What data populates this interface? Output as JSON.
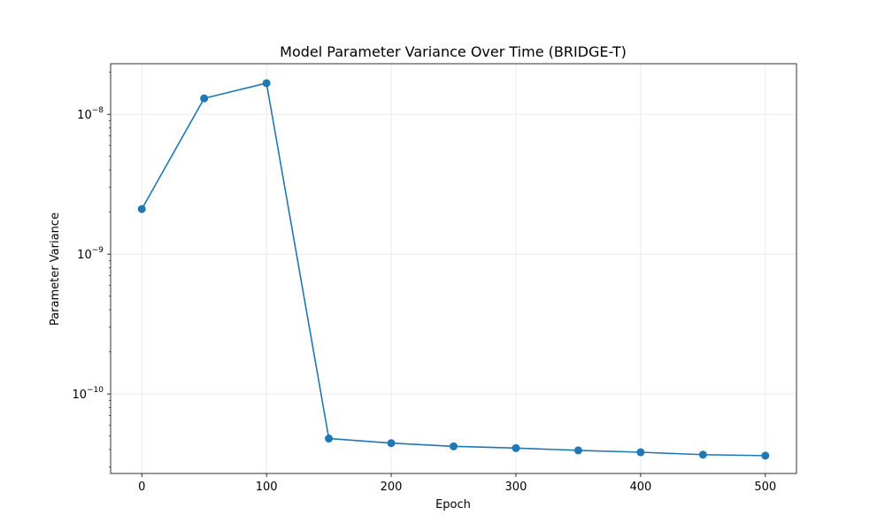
{
  "chart_data": {
    "type": "line",
    "title": "Model Parameter Variance Over Time (BRIDGE-T)",
    "xlabel": "Epoch",
    "ylabel": "Parameter Variance",
    "x_scale": "linear",
    "y_scale": "log",
    "xlim": [
      -25,
      525
    ],
    "ylim": [
      2.7e-11,
      2.3e-08
    ],
    "grid": true,
    "marker": "circle",
    "colors": {
      "line": "#1f77b4",
      "grid": "#e6e6e6",
      "axes": "#000000"
    },
    "x_ticks": [
      {
        "value": 0,
        "label": "0"
      },
      {
        "value": 100,
        "label": "100"
      },
      {
        "value": 200,
        "label": "200"
      },
      {
        "value": 300,
        "label": "300"
      },
      {
        "value": 400,
        "label": "400"
      },
      {
        "value": 500,
        "label": "500"
      }
    ],
    "y_ticks": [
      {
        "value": 1e-10,
        "mantissa": "10",
        "exponent": "−10"
      },
      {
        "value": 1e-09,
        "mantissa": "10",
        "exponent": "−9"
      },
      {
        "value": 1e-08,
        "mantissa": "10",
        "exponent": "−8"
      }
    ],
    "x": [
      0,
      50,
      100,
      150,
      200,
      250,
      300,
      350,
      400,
      450,
      500
    ],
    "series": [
      {
        "values": [
          2.1e-09,
          1.3e-08,
          1.67e-08,
          4.8e-11,
          4.45e-11,
          4.22e-11,
          4.1e-11,
          3.95e-11,
          3.83e-11,
          3.68e-11,
          3.62e-11
        ]
      }
    ]
  }
}
